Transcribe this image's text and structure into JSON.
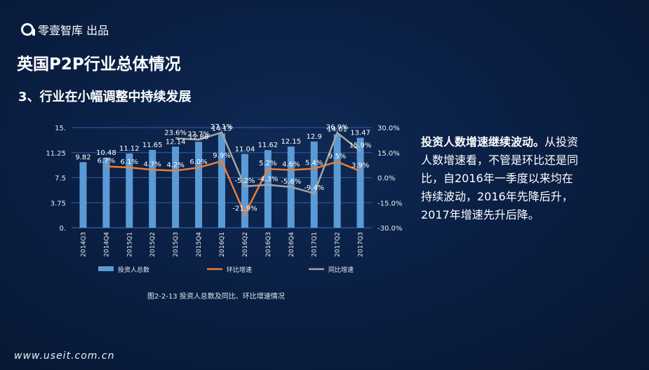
{
  "brand": "零壹智库 出品",
  "title": "英国P2P行业总体情况",
  "subtitle": "3、行业在小幅调整中持续发展",
  "description_bold": "投资人数增速继续波动。",
  "description_text": "从投资人数增速看，不管是环比还是同比，自2016年一季度以来均在持续波动，2016年先降后升，2017年增速先升后降。",
  "caption": "图2-2-13 投资人总数及同比、环比增速情况",
  "footer": "www.useit.com.cn",
  "chart_data": {
    "type": "bar",
    "categories": [
      "2014Q3",
      "2014Q4",
      "2015Q1",
      "2015Q2",
      "2015Q3",
      "2015Q4",
      "2016Q1",
      "2016Q2",
      "2016Q3",
      "2016Q4",
      "2017Q1",
      "2017Q2",
      "2017Q3"
    ],
    "series": [
      {
        "name": "投资人总数",
        "type": "bar",
        "color": "#5b9bd5",
        "values": [
          9.82,
          10.48,
          11.12,
          11.65,
          12.14,
          12.86,
          14.13,
          11.04,
          11.62,
          12.15,
          12.9,
          14.01,
          13.47
        ],
        "labels": [
          "9.82",
          "10.48",
          "11.12",
          "11.65",
          "12.14",
          "12.86",
          "14.13",
          "11.04",
          "11.62",
          "12.15",
          "12.9",
          "14.01",
          "13.47"
        ]
      },
      {
        "name": "环比增速",
        "type": "line",
        "color": "#ed7d31",
        "values": [
          null,
          6.7,
          6.1,
          4.7,
          4.2,
          6.0,
          9.9,
          -21.9,
          5.2,
          4.6,
          5.4,
          9.5,
          3.9
        ],
        "labels": [
          "",
          "6.7%",
          "6.1%",
          "4.7%",
          "4.2%",
          "6.0%",
          "9.9%",
          "-21.9%",
          "5.2%",
          "4.6%",
          "5.4%",
          "9.5%",
          "3.9%"
        ]
      },
      {
        "name": "同比增速",
        "type": "line",
        "color": "#a5a5a5",
        "values": [
          null,
          null,
          null,
          null,
          23.6,
          22.7,
          27.1,
          -5.2,
          -4.3,
          -5.6,
          -9.4,
          26.9,
          15.9
        ],
        "labels": [
          "",
          "",
          "",
          "",
          "23.6%",
          "22.7%",
          "27.1%",
          "-5.2%",
          "-4.3%",
          "-5.6%",
          "-9.4%",
          "26.9%",
          "15.9%"
        ]
      }
    ],
    "y_left": {
      "ticks": [
        "15.",
        "11.25",
        "7.5",
        "3.75",
        "0."
      ],
      "range": [
        0,
        15
      ]
    },
    "y_right": {
      "ticks": [
        "30.0%",
        "15.0%",
        "0.0%",
        "-15.0%",
        "-30.0%"
      ],
      "range": [
        -30,
        30
      ]
    }
  }
}
